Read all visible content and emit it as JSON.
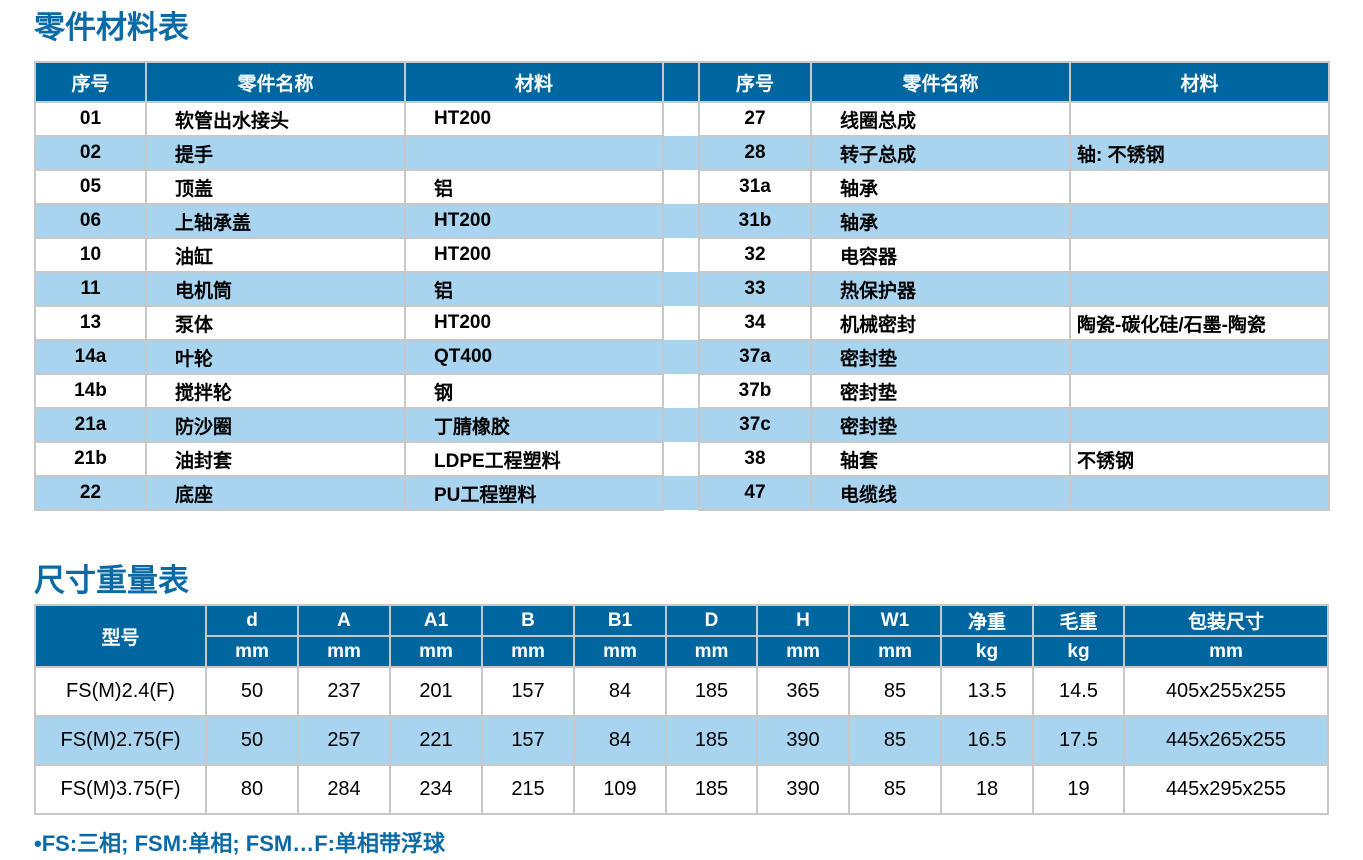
{
  "parts_title": "零件材料表",
  "parts": {
    "headers": [
      "序号",
      "零件名称",
      "材料"
    ],
    "left": [
      [
        "01",
        "软管出水接头",
        "HT200"
      ],
      [
        "02",
        "提手",
        ""
      ],
      [
        "05",
        "顶盖",
        "铝"
      ],
      [
        "06",
        "上轴承盖",
        "HT200"
      ],
      [
        "10",
        "油缸",
        "HT200"
      ],
      [
        "11",
        "电机筒",
        "铝"
      ],
      [
        "13",
        "泵体",
        "HT200"
      ],
      [
        "14a",
        "叶轮",
        "QT400"
      ],
      [
        "14b",
        "搅拌轮",
        "钢"
      ],
      [
        "21a",
        "防沙圈",
        "丁腈橡胶"
      ],
      [
        "21b",
        "油封套",
        "LDPE工程塑料"
      ],
      [
        "22",
        "底座",
        "PU工程塑料"
      ]
    ],
    "right": [
      [
        "27",
        "线圈总成",
        ""
      ],
      [
        "28",
        "转子总成",
        "轴: 不锈钢"
      ],
      [
        "31a",
        "轴承",
        ""
      ],
      [
        "31b",
        "轴承",
        ""
      ],
      [
        "32",
        "电容器",
        ""
      ],
      [
        "33",
        "热保护器",
        ""
      ],
      [
        "34",
        "机械密封",
        "陶瓷-碳化硅/石墨-陶瓷"
      ],
      [
        "37a",
        "密封垫",
        ""
      ],
      [
        "37b",
        "密封垫",
        ""
      ],
      [
        "37c",
        "密封垫",
        ""
      ],
      [
        "38",
        "轴套",
        "不锈钢"
      ],
      [
        "47",
        "电缆线",
        ""
      ]
    ]
  },
  "sizes_title": "尺寸重量表",
  "sizes": {
    "model_header": "型号",
    "headers": [
      "d",
      "A",
      "A1",
      "B",
      "B1",
      "D",
      "H",
      "W1",
      "净重",
      "毛重",
      "包装尺寸"
    ],
    "units": [
      "mm",
      "mm",
      "mm",
      "mm",
      "mm",
      "mm",
      "mm",
      "mm",
      "kg",
      "kg",
      "mm"
    ],
    "rows": [
      [
        "FS(M)2.4(F)",
        "50",
        "237",
        "201",
        "157",
        "84",
        "185",
        "365",
        "85",
        "13.5",
        "14.5",
        "405x255x255"
      ],
      [
        "FS(M)2.75(F)",
        "50",
        "257",
        "221",
        "157",
        "84",
        "185",
        "390",
        "85",
        "16.5",
        "17.5",
        "445x265x255"
      ],
      [
        "FS(M)3.75(F)",
        "80",
        "284",
        "234",
        "215",
        "109",
        "185",
        "390",
        "85",
        "18",
        "19",
        "445x295x255"
      ]
    ]
  },
  "note": "•FS:三相; FSM:单相; FSM…F:单相带浮球",
  "colors": {
    "header": "#0066a0",
    "alt_row": "#a9d4ef",
    "title": "#0a6aa6"
  }
}
